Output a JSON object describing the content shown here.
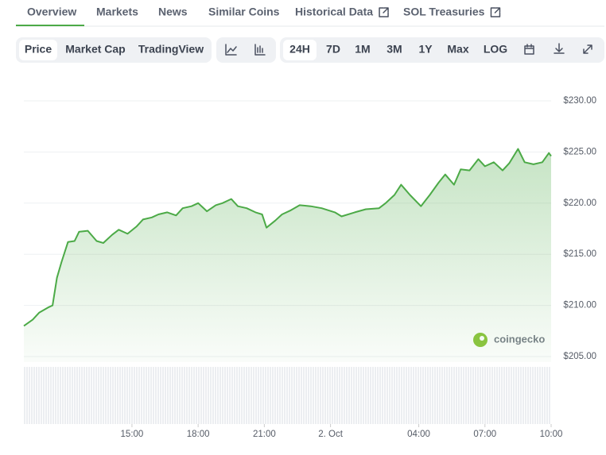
{
  "nav": {
    "tabs": [
      "Overview",
      "Markets",
      "News",
      "Similar Coins",
      "Historical Data",
      "SOL Treasuries"
    ]
  },
  "toolbar": {
    "view": [
      "Price",
      "Market Cap",
      "TradingView"
    ],
    "ranges": [
      "24H",
      "7D",
      "1M",
      "3M",
      "1Y",
      "Max",
      "LOG"
    ]
  },
  "watermark": "coingecko",
  "chart_data": {
    "type": "area",
    "color": "#4caa47",
    "grid": true,
    "x": [
      10.1,
      10.5,
      10.8,
      11.2,
      11.4,
      11.6,
      11.8,
      12.1,
      12.4,
      12.6,
      13.0,
      13.4,
      13.7,
      14.1,
      14.4,
      14.8,
      15.2,
      15.5,
      15.9,
      16.2,
      16.6,
      17.0,
      17.3,
      17.7,
      18.0,
      18.4,
      18.8,
      19.1,
      19.5,
      19.8,
      20.2,
      20.6,
      20.9,
      21.1,
      21.5,
      21.8,
      22.2,
      22.6,
      23.1,
      23.6,
      24.2,
      24.5,
      25.1,
      25.6,
      26.2,
      26.5,
      26.9,
      27.2,
      27.6,
      28.1,
      28.5,
      28.9,
      29.2,
      29.6,
      29.9,
      30.3,
      30.7,
      31.0,
      31.4,
      31.8,
      32.1,
      32.5,
      32.8,
      33.2,
      33.6,
      33.9,
      34.0
    ],
    "values": [
      208.0,
      208.6,
      209.3,
      209.8,
      210.0,
      212.7,
      214.2,
      216.2,
      216.3,
      217.2,
      217.3,
      216.3,
      216.1,
      216.9,
      217.4,
      217.0,
      217.7,
      218.4,
      218.6,
      218.9,
      219.1,
      218.8,
      219.5,
      219.7,
      220.0,
      219.2,
      219.8,
      220.0,
      220.4,
      219.7,
      219.5,
      219.1,
      218.9,
      217.6,
      218.3,
      218.9,
      219.3,
      219.8,
      219.7,
      219.5,
      219.1,
      218.7,
      219.1,
      219.4,
      219.5,
      220.0,
      220.8,
      221.8,
      220.8,
      219.7,
      220.8,
      222.0,
      222.8,
      221.8,
      223.3,
      223.2,
      224.3,
      223.6,
      224.0,
      223.2,
      223.9,
      225.3,
      224.0,
      223.8,
      224.0,
      224.9,
      224.6
    ],
    "xlim": [
      10.1,
      34
    ],
    "xticks": [
      {
        "value": 15,
        "label": "15:00"
      },
      {
        "value": 18,
        "label": "18:00"
      },
      {
        "value": 21,
        "label": "21:00"
      },
      {
        "value": 24,
        "label": "2. Oct"
      },
      {
        "value": 28,
        "label": "04:00"
      },
      {
        "value": 31,
        "label": "07:00"
      },
      {
        "value": 34,
        "label": "10:00"
      }
    ],
    "ylim": [
      205,
      230
    ],
    "yticks": [
      {
        "value": 205,
        "label": "$205.00"
      },
      {
        "value": 210,
        "label": "$210.00"
      },
      {
        "value": 215,
        "label": "$215.00"
      },
      {
        "value": 220,
        "label": "$220.00"
      },
      {
        "value": 225,
        "label": "$225.00"
      },
      {
        "value": 230,
        "label": "$230.00"
      }
    ]
  }
}
